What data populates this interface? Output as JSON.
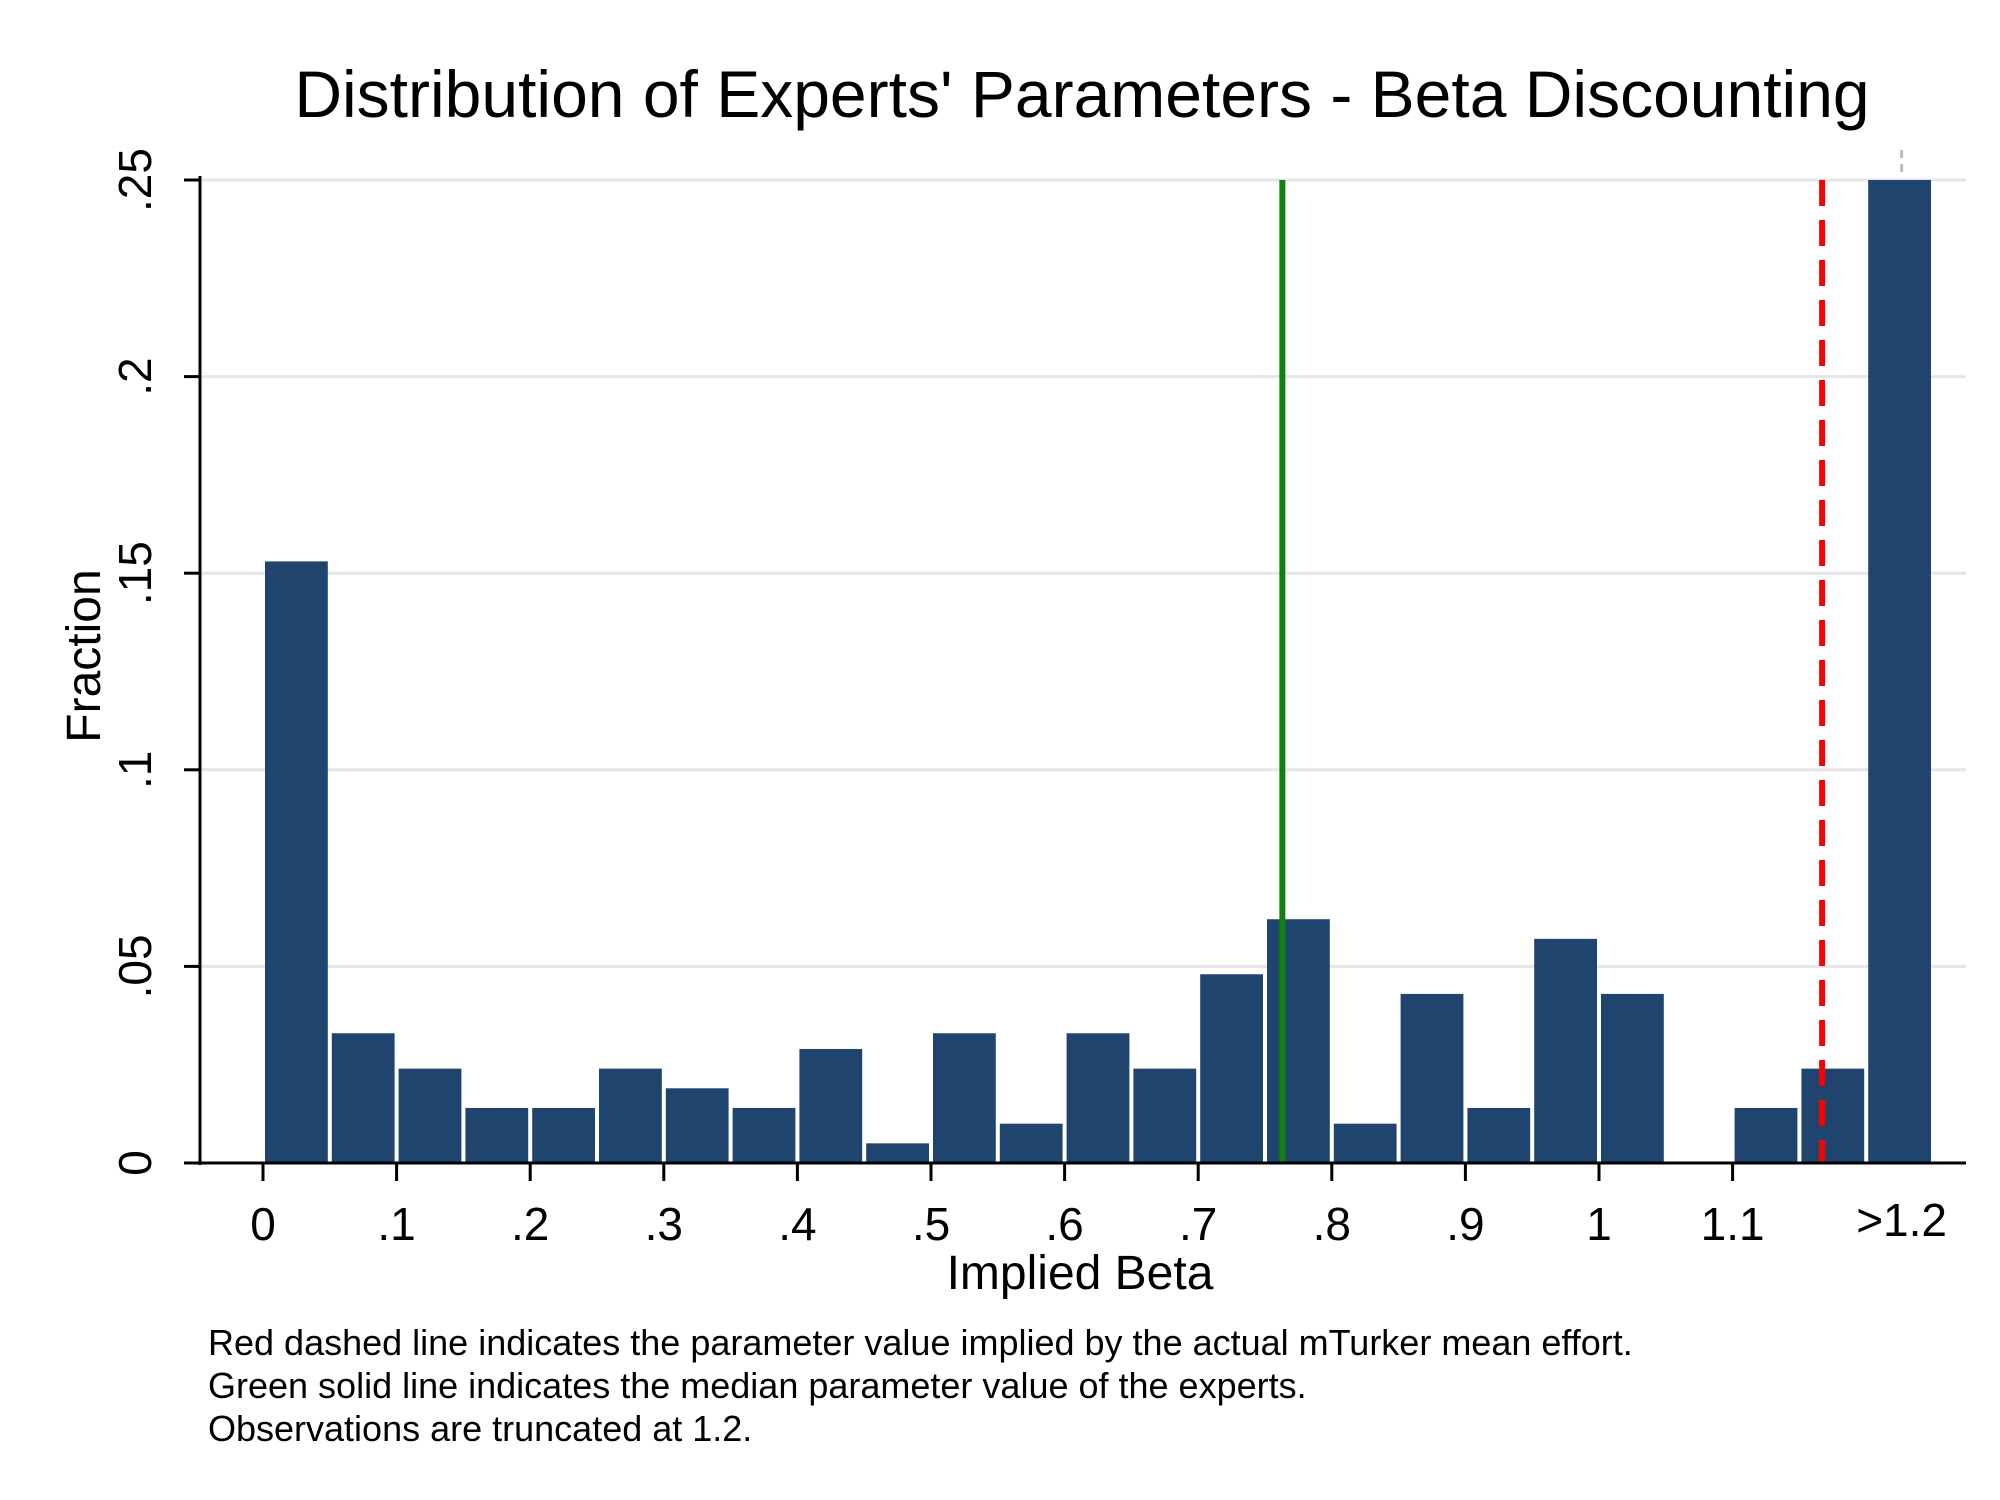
{
  "chart_data": {
    "type": "bar",
    "title": "Distribution of Experts' Parameters - Beta Discounting",
    "xlabel": "Implied Beta",
    "ylabel": "Fraction",
    "x_tick_labels": [
      "0",
      ".1",
      ".2",
      ".3",
      ".4",
      ".5",
      ".6",
      ".7",
      ".8",
      ".9",
      "1",
      "1.1",
      ">1.2"
    ],
    "y_tick_labels": [
      "0",
      ".05",
      ".1",
      ".15",
      ".2",
      ".25"
    ],
    "y_ticks": [
      0,
      0.05,
      0.1,
      0.15,
      0.2,
      0.25
    ],
    "ylim": [
      0,
      0.25
    ],
    "bin_width": 0.05,
    "bins": [
      {
        "start": 0.0,
        "value": 0.153
      },
      {
        "start": 0.05,
        "value": 0.033
      },
      {
        "start": 0.1,
        "value": 0.024
      },
      {
        "start": 0.15,
        "value": 0.014
      },
      {
        "start": 0.2,
        "value": 0.014
      },
      {
        "start": 0.25,
        "value": 0.024
      },
      {
        "start": 0.3,
        "value": 0.019
      },
      {
        "start": 0.35,
        "value": 0.014
      },
      {
        "start": 0.4,
        "value": 0.029
      },
      {
        "start": 0.45,
        "value": 0.005
      },
      {
        "start": 0.5,
        "value": 0.033
      },
      {
        "start": 0.55,
        "value": 0.01
      },
      {
        "start": 0.6,
        "value": 0.033
      },
      {
        "start": 0.65,
        "value": 0.024
      },
      {
        "start": 0.7,
        "value": 0.048
      },
      {
        "start": 0.75,
        "value": 0.062
      },
      {
        "start": 0.8,
        "value": 0.01
      },
      {
        "start": 0.85,
        "value": 0.043
      },
      {
        "start": 0.9,
        "value": 0.014
      },
      {
        "start": 0.95,
        "value": 0.057
      },
      {
        "start": 1.0,
        "value": 0.043
      },
      {
        "start": 1.05,
        "value": 0
      },
      {
        "start": 1.1,
        "value": 0.014
      },
      {
        "start": 1.15,
        "value": 0.024
      },
      {
        "start": 1.2,
        "value": 0.25
      }
    ],
    "reference_lines": [
      {
        "style": "solid",
        "color": "#118011",
        "x": 0.763
      },
      {
        "style": "dashed",
        "color": "#ff0000",
        "x": 1.167
      }
    ],
    "bar_color": "#1f456e",
    "grid": true,
    "notes": [
      "Red dashed line indicates the parameter value implied by the actual mTurker mean effort.",
      "Green solid line indicates the median parameter value of the experts.",
      "Observations are truncated at 1.2."
    ]
  }
}
